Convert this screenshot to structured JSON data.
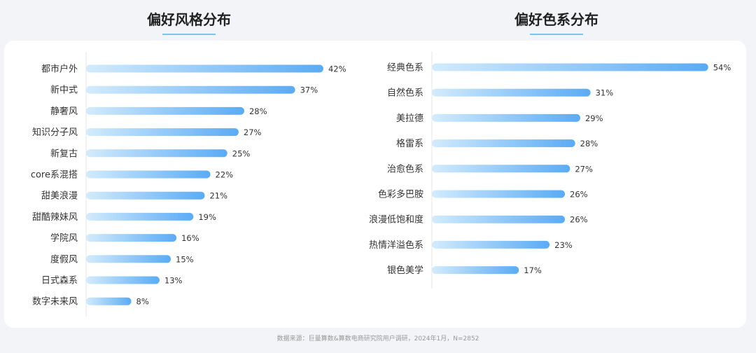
{
  "chart_data": [
    {
      "type": "bar",
      "orientation": "horizontal",
      "title": "偏好风格分布",
      "categories": [
        "都市户外",
        "新中式",
        "静奢风",
        "知识分子风",
        "新复古",
        "core系混搭",
        "甜美浪漫",
        "甜酷辣妹风",
        "学院风",
        "度假风",
        "日式森系",
        "数字未来风"
      ],
      "values": [
        42,
        37,
        28,
        27,
        25,
        22,
        21,
        19,
        16,
        15,
        13,
        8
      ],
      "value_suffix": "%",
      "xlim": [
        0,
        100
      ],
      "grid": false,
      "bar_color_start": "#d3ebfc",
      "bar_color_end": "#5aabf5"
    },
    {
      "type": "bar",
      "orientation": "horizontal",
      "title": "偏好色系分布",
      "categories": [
        "经典色系",
        "自然色系",
        "美拉德",
        "格雷系",
        "治愈色系",
        "色彩多巴胺",
        "浪漫低饱和度",
        "热情洋溢色系",
        "银色美学"
      ],
      "values": [
        54,
        31,
        29,
        28,
        27,
        26,
        26,
        23,
        17
      ],
      "value_suffix": "%",
      "xlim": [
        0,
        100
      ],
      "grid": false,
      "bar_color_start": "#d3ebfc",
      "bar_color_end": "#5aabf5"
    }
  ],
  "footnote": "数据来源：巨量算数&算数电商研究院用户调研，2024年1月，N=2852"
}
